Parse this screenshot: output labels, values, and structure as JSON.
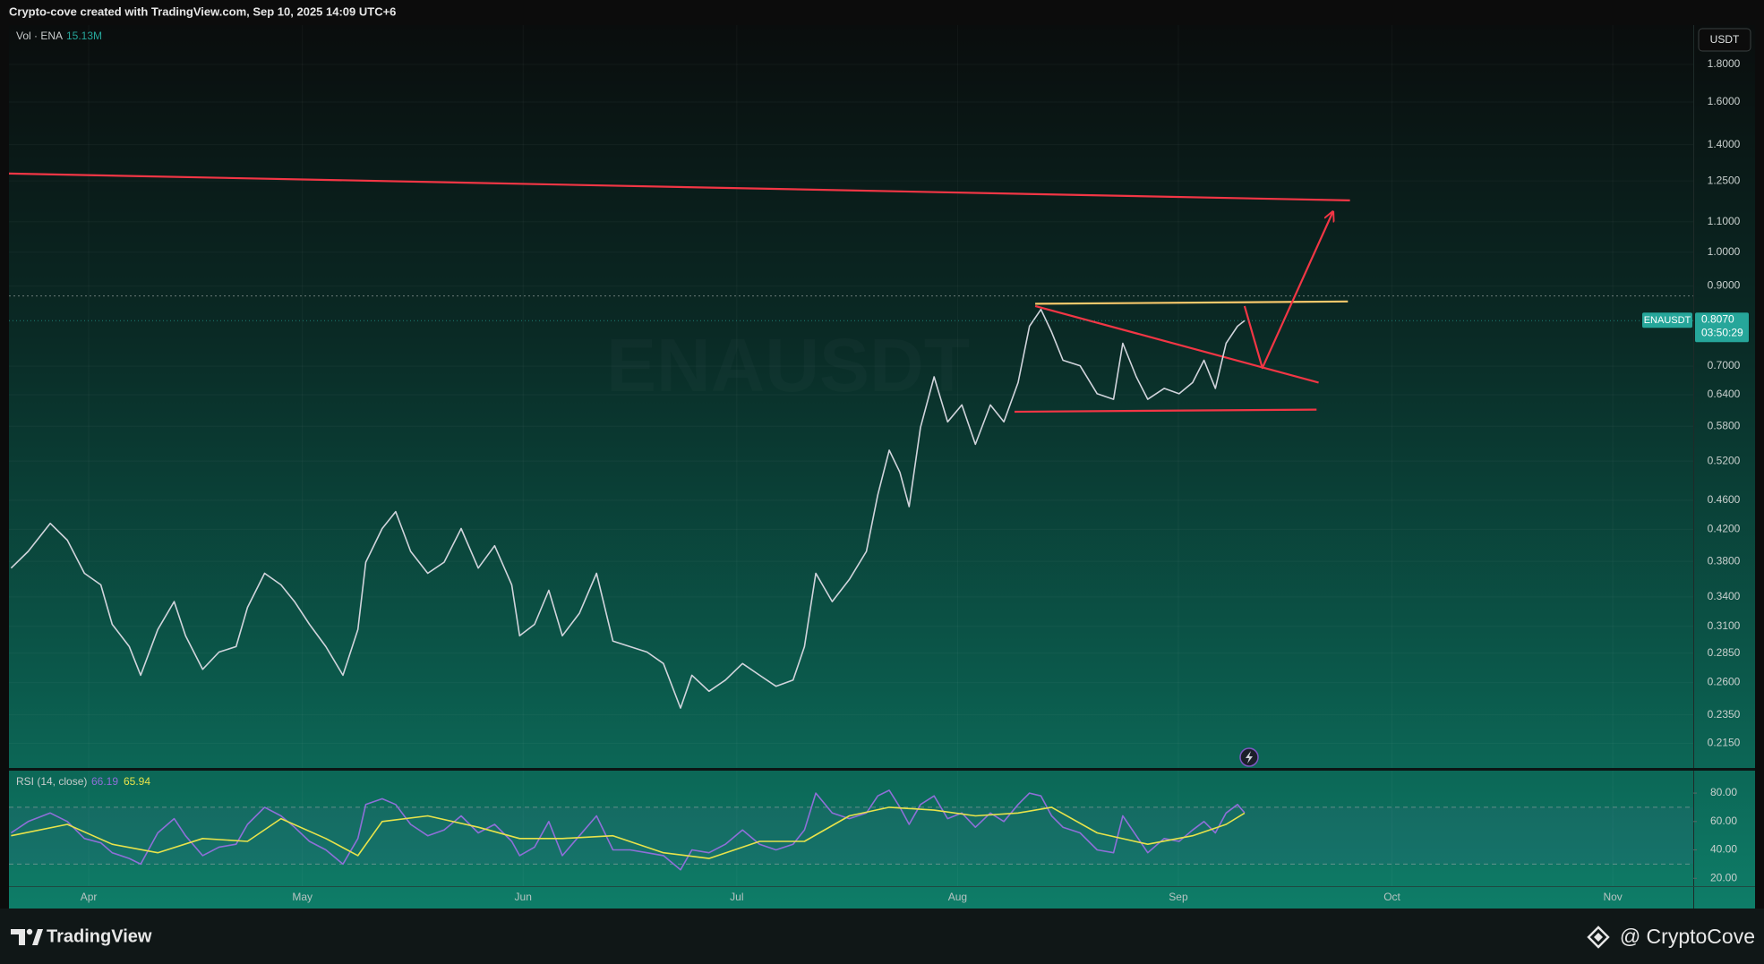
{
  "header": "Crypto-cove created with TradingView.com, Sep 10, 2025 14:09 UTC+6",
  "footer": {
    "brand": "TradingView",
    "credit": "@ CryptoCove"
  },
  "chart_data": [
    {
      "type": "line",
      "watermark": "ENAUSDT",
      "currency": "USDT",
      "volume_label": "Vol · ENA",
      "volume_value": "15.13M",
      "log_scale": true,
      "grid": true,
      "xlim": [
        0,
        236.5
      ],
      "xticks": [
        {
          "value": 11.2,
          "label": "Apr"
        },
        {
          "value": 41.2,
          "label": "May"
        },
        {
          "value": 72.2,
          "label": "Jun"
        },
        {
          "value": 102.2,
          "label": "Jul"
        },
        {
          "value": 133.2,
          "label": "Aug"
        },
        {
          "value": 164.2,
          "label": "Sep"
        },
        {
          "value": 194.2,
          "label": "Oct"
        },
        {
          "value": 225.2,
          "label": "Nov"
        }
      ],
      "ylim": [
        0.199,
        2.036
      ],
      "yticks": [
        {
          "value": 1.8,
          "label": "1.8000"
        },
        {
          "value": 1.6,
          "label": "1.6000"
        },
        {
          "value": 1.4,
          "label": "1.4000"
        },
        {
          "value": 1.25,
          "label": "1.2500"
        },
        {
          "value": 1.1,
          "label": "1.1000"
        },
        {
          "value": 1,
          "label": "1.0000"
        },
        {
          "value": 0.9,
          "label": "0.9000"
        },
        {
          "value": 0.7,
          "label": "0.7000"
        },
        {
          "value": 0.64,
          "label": "0.6400"
        },
        {
          "value": 0.58,
          "label": "0.5800"
        },
        {
          "value": 0.52,
          "label": "0.5200"
        },
        {
          "value": 0.46,
          "label": "0.4600"
        },
        {
          "value": 0.42,
          "label": "0.4200"
        },
        {
          "value": 0.38,
          "label": "0.3800"
        },
        {
          "value": 0.34,
          "label": "0.3400"
        },
        {
          "value": 0.31,
          "label": "0.3100"
        },
        {
          "value": 0.285,
          "label": "0.2850"
        },
        {
          "value": 0.26,
          "label": "0.2600"
        },
        {
          "value": 0.235,
          "label": "0.2350"
        },
        {
          "value": 0.215,
          "label": "0.2150"
        }
      ],
      "series": [
        {
          "color": "#d1d4dc",
          "x": [
            0.3,
            2.7,
            5.8,
            8.2,
            10.6,
            12.9,
            14.5,
            16.9,
            18.5,
            20.9,
            23.2,
            24.8,
            27.2,
            29.5,
            31.9,
            33.5,
            35.9,
            38.2,
            40.1,
            42.2,
            44.5,
            46.9,
            49.0,
            50.1,
            52.4,
            54.3,
            56.4,
            58.8,
            61.1,
            63.5,
            65.9,
            68.2,
            70.6,
            71.7,
            73.8,
            75.8,
            77.7,
            80.1,
            82.5,
            84.8,
            87.2,
            89.6,
            91.9,
            94.3,
            95.9,
            98.3,
            100.6,
            103.0,
            105.4,
            107.7,
            110.1,
            111.7,
            113.3,
            115.6,
            118.0,
            120.4,
            122.0,
            123.6,
            125.1,
            126.4,
            128.0,
            129.9,
            131.8,
            133.8,
            135.7,
            137.8,
            139.7,
            141.7,
            143.3,
            144.9,
            146.4,
            148.0,
            150.4,
            152.8,
            155.1,
            156.4,
            158.3,
            159.9,
            162.2,
            164.3,
            166.2,
            167.8,
            169.4,
            170.9,
            172.5,
            173.5
          ],
          "values": [
            0.372,
            0.392,
            0.428,
            0.406,
            0.366,
            0.353,
            0.312,
            0.291,
            0.266,
            0.307,
            0.335,
            0.301,
            0.271,
            0.286,
            0.291,
            0.329,
            0.366,
            0.353,
            0.335,
            0.312,
            0.291,
            0.266,
            0.307,
            0.379,
            0.421,
            0.444,
            0.392,
            0.366,
            0.379,
            0.421,
            0.372,
            0.399,
            0.353,
            0.301,
            0.312,
            0.347,
            0.301,
            0.323,
            0.366,
            0.296,
            0.291,
            0.286,
            0.276,
            0.24,
            0.266,
            0.253,
            0.262,
            0.276,
            0.266,
            0.257,
            0.262,
            0.291,
            0.366,
            0.335,
            0.359,
            0.392,
            0.468,
            0.538,
            0.502,
            0.451,
            0.578,
            0.677,
            0.588,
            0.62,
            0.548,
            0.62,
            0.588,
            0.665,
            0.793,
            0.836,
            0.779,
            0.713,
            0.701,
            0.642,
            0.631,
            0.752,
            0.677,
            0.631,
            0.653,
            0.642,
            0.665,
            0.713,
            0.653,
            0.752,
            0.793,
            0.807
          ]
        }
      ],
      "last_price": {
        "name": "ENAUSDT",
        "value": 0.807,
        "label": "0.8070",
        "countdown": "03:50:29",
        "color": "#26a69a"
      },
      "annotations": [
        {
          "type": "level",
          "color": "#6b7b78",
          "values": [
            0.872
          ]
        },
        {
          "type": "trendline",
          "color": "#f23645",
          "x": [
            0,
            188.3
          ],
          "values": [
            1.279,
            1.176
          ]
        },
        {
          "type": "trendline",
          "color": "#f7c86b",
          "x": [
            144.1,
            188.0
          ],
          "values": [
            0.851,
            0.857
          ]
        },
        {
          "type": "trendline",
          "color": "#f23645",
          "x": [
            144.1,
            183.9
          ],
          "values": [
            0.845,
            0.665
          ]
        },
        {
          "type": "trendline",
          "color": "#f23645",
          "x": [
            141.2,
            183.6
          ],
          "values": [
            0.607,
            0.611
          ]
        },
        {
          "type": "arrow",
          "color": "#f23645",
          "x": [
            173.5,
            176.0,
            185.9
          ],
          "values": [
            0.845,
            0.696,
            1.135
          ]
        }
      ]
    },
    {
      "type": "line",
      "title": "RSI (14, close)",
      "ylim": [
        14.5,
        95.8
      ],
      "yticks": [
        {
          "value": 80,
          "label": "80.00"
        },
        {
          "value": 60,
          "label": "60.00"
        },
        {
          "value": 40,
          "label": "40.00"
        },
        {
          "value": 20,
          "label": "20.00"
        }
      ],
      "levels": [
        70,
        30
      ],
      "series": [
        {
          "color": "#8e6fd8",
          "x": [
            0.3,
            2.7,
            5.8,
            8.2,
            10.6,
            12.9,
            14.5,
            16.9,
            18.5,
            20.9,
            23.2,
            24.8,
            27.2,
            29.5,
            31.9,
            33.5,
            35.9,
            38.2,
            40.1,
            42.2,
            44.5,
            46.9,
            49.0,
            50.1,
            52.4,
            54.3,
            56.4,
            58.8,
            61.1,
            63.5,
            65.9,
            68.2,
            70.6,
            71.7,
            73.8,
            75.8,
            77.7,
            80.1,
            82.5,
            84.8,
            87.2,
            89.6,
            91.9,
            94.3,
            95.9,
            98.3,
            100.6,
            103.0,
            105.4,
            107.7,
            110.1,
            111.7,
            113.3,
            115.6,
            118.0,
            120.4,
            122.0,
            123.6,
            125.1,
            126.4,
            128.0,
            129.9,
            131.8,
            133.8,
            135.7,
            137.8,
            139.7,
            141.7,
            143.3,
            144.9,
            146.4,
            148.0,
            150.4,
            152.8,
            155.1,
            156.4,
            158.3,
            159.9,
            162.2,
            164.3,
            166.2,
            167.8,
            169.4,
            170.9,
            172.5,
            173.5
          ],
          "values": [
            52,
            60,
            66,
            60,
            48,
            45,
            38,
            34,
            30,
            52,
            62,
            50,
            36,
            42,
            44,
            58,
            70,
            64,
            56,
            46,
            40,
            30,
            48,
            72,
            76,
            72,
            58,
            50,
            54,
            64,
            52,
            58,
            46,
            36,
            42,
            60,
            36,
            50,
            64,
            40,
            40,
            38,
            36,
            26,
            40,
            38,
            44,
            54,
            44,
            40,
            44,
            54,
            80,
            66,
            62,
            66,
            78,
            82,
            70,
            58,
            72,
            78,
            62,
            66,
            56,
            66,
            60,
            72,
            80,
            78,
            64,
            56,
            52,
            40,
            38,
            64,
            50,
            38,
            48,
            46,
            54,
            60,
            52,
            66,
            72,
            66.19
          ]
        },
        {
          "color": "#e8e34a",
          "x": [
            0.3,
            8.2,
            14.5,
            20.9,
            27.2,
            33.5,
            38.2,
            44.5,
            49.0,
            52.4,
            58.8,
            65.9,
            71.7,
            77.7,
            84.8,
            91.9,
            98.3,
            105.4,
            111.7,
            118.0,
            123.6,
            129.9,
            135.7,
            141.7,
            146.4,
            152.8,
            159.9,
            166.2,
            170.9,
            173.5
          ],
          "values": [
            50,
            58,
            44,
            38,
            48,
            46,
            62,
            48,
            36,
            60,
            64,
            56,
            48,
            48,
            50,
            38,
            34,
            46,
            46,
            64,
            70,
            68,
            64,
            66,
            70,
            52,
            44,
            50,
            58,
            65.94
          ]
        }
      ]
    }
  ]
}
